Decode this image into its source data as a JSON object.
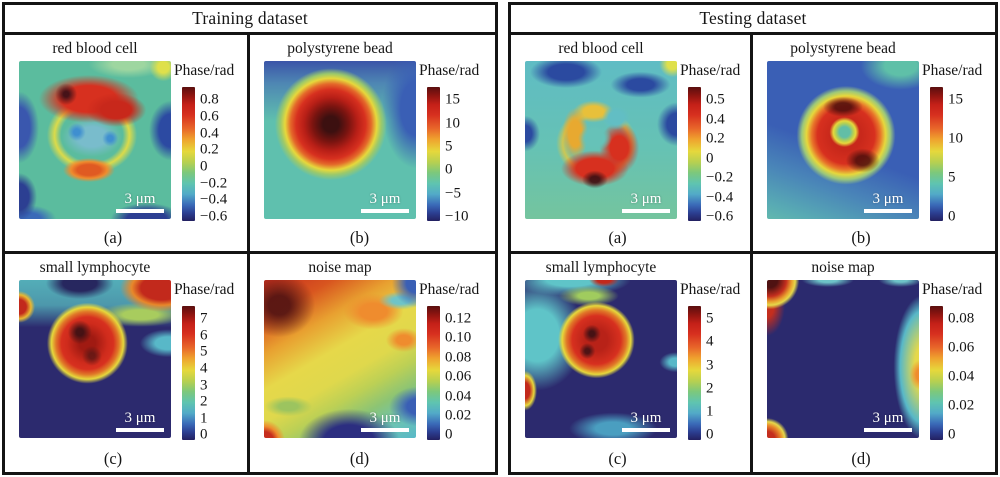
{
  "figure": {
    "colorbar_unit": "Phase/rad",
    "scale_bar_label": "3 μm",
    "colormap_colors_bottom_to_top": [
      "#232060",
      "#2c3f92",
      "#3a6ab8",
      "#52aac8",
      "#5fc4b0",
      "#7cc87c",
      "#b8d050",
      "#e6d83c",
      "#efa22e",
      "#e8662a",
      "#d7301f",
      "#8c1410",
      "#5a0f0f"
    ]
  },
  "panels": [
    {
      "title": "Training dataset",
      "cells": [
        {
          "id": "train-rbc",
          "title": "red blood cell",
          "caption": "(a)",
          "unit": "Phase/rad",
          "scalebar": "3 μm",
          "ticks": [
            "0.8",
            "0.6",
            "0.4",
            "0.2",
            "0",
            "−0.2",
            "−0.4",
            "−0.6"
          ]
        },
        {
          "id": "train-bead",
          "title": "polystyrene bead",
          "caption": "(b)",
          "unit": "Phase/rad",
          "scalebar": "3 μm",
          "ticks": [
            "15",
            "10",
            "5",
            "0",
            "−5",
            "−10"
          ]
        },
        {
          "id": "train-lymph",
          "title": "small lymphocyte",
          "caption": "(c)",
          "unit": "Phase/rad",
          "scalebar": "3 μm",
          "ticks": [
            "7",
            "6",
            "5",
            "4",
            "3",
            "2",
            "1",
            "0"
          ]
        },
        {
          "id": "train-noise",
          "title": "noise map",
          "caption": "(d)",
          "unit": "Phase/rad",
          "scalebar": "3 μm",
          "ticks": [
            "0.12",
            "0.10",
            "0.08",
            "0.06",
            "0.04",
            "0.02",
            "0"
          ]
        }
      ]
    },
    {
      "title": "Testing dataset",
      "cells": [
        {
          "id": "test-rbc",
          "title": "red blood cell",
          "caption": "(a)",
          "unit": "Phase/rad",
          "scalebar": "3 μm",
          "ticks": [
            "0.5",
            "0.4",
            "0.2",
            "0",
            "−0.2",
            "−0.4",
            "−0.6"
          ]
        },
        {
          "id": "test-bead",
          "title": "polystyrene bead",
          "caption": "(b)",
          "unit": "Phase/rad",
          "scalebar": "3 μm",
          "ticks": [
            "15",
            "10",
            "5",
            "0"
          ]
        },
        {
          "id": "test-lymph",
          "title": "small lymphocyte",
          "caption": "(c)",
          "unit": "Phase/rad",
          "scalebar": "3 μm",
          "ticks": [
            "5",
            "4",
            "3",
            "2",
            "1",
            "0"
          ]
        },
        {
          "id": "test-noise",
          "title": "noise map",
          "caption": "(d)",
          "unit": "Phase/rad",
          "scalebar": "3 μm",
          "ticks": [
            "0.08",
            "0.06",
            "0.04",
            "0.02",
            "0"
          ]
        }
      ]
    }
  ]
}
